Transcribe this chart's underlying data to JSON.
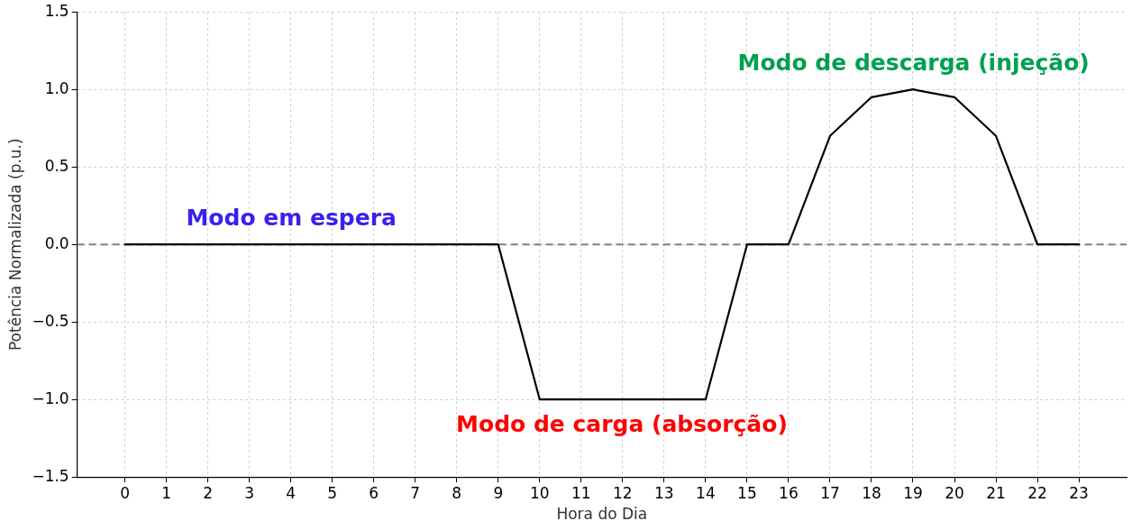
{
  "chart_data": {
    "type": "line",
    "xlabel": "Hora do Dia",
    "ylabel": "Potência Normalizada (p.u.)",
    "x": [
      0,
      1,
      2,
      3,
      4,
      5,
      6,
      7,
      8,
      9,
      10,
      11,
      12,
      13,
      14,
      15,
      16,
      17,
      18,
      19,
      20,
      21,
      22,
      23
    ],
    "series": [
      {
        "color": "#000000",
        "values": [
          0,
          0,
          0,
          0,
          0,
          0,
          0,
          0,
          0,
          0,
          -1,
          -1,
          -1,
          -1,
          -1,
          0,
          0,
          0.7,
          0.95,
          1.0,
          0.95,
          0.7,
          0,
          0
        ]
      }
    ],
    "xlim": [
      -1.15,
      24.15
    ],
    "xticks": [
      0,
      1,
      2,
      3,
      4,
      5,
      6,
      7,
      8,
      9,
      10,
      11,
      12,
      13,
      14,
      15,
      16,
      17,
      18,
      19,
      20,
      21,
      22,
      23
    ],
    "ylim": [
      -1.5,
      1.5
    ],
    "yticks": [
      {
        "value": -1.5,
        "label": "−1.5"
      },
      {
        "value": -1,
        "label": "−1.0"
      },
      {
        "value": -0.5,
        "label": "−0.5"
      },
      {
        "value": 0,
        "label": "0.0"
      },
      {
        "value": 0.5,
        "label": "0.5"
      },
      {
        "value": 1,
        "label": "1.0"
      },
      {
        "value": 1.5,
        "label": "1.5"
      }
    ],
    "ref_lines": [
      {
        "axis": "y",
        "value": 0,
        "color": "#808080",
        "line_style": "dashed"
      }
    ],
    "annotations": [
      "Modo em espera",
      "Modo de carga (absorção)",
      "Modo de descarga (injeção)"
    ],
    "grid": true,
    "legend": false,
    "marker": "none",
    "line_style": "solid"
  }
}
